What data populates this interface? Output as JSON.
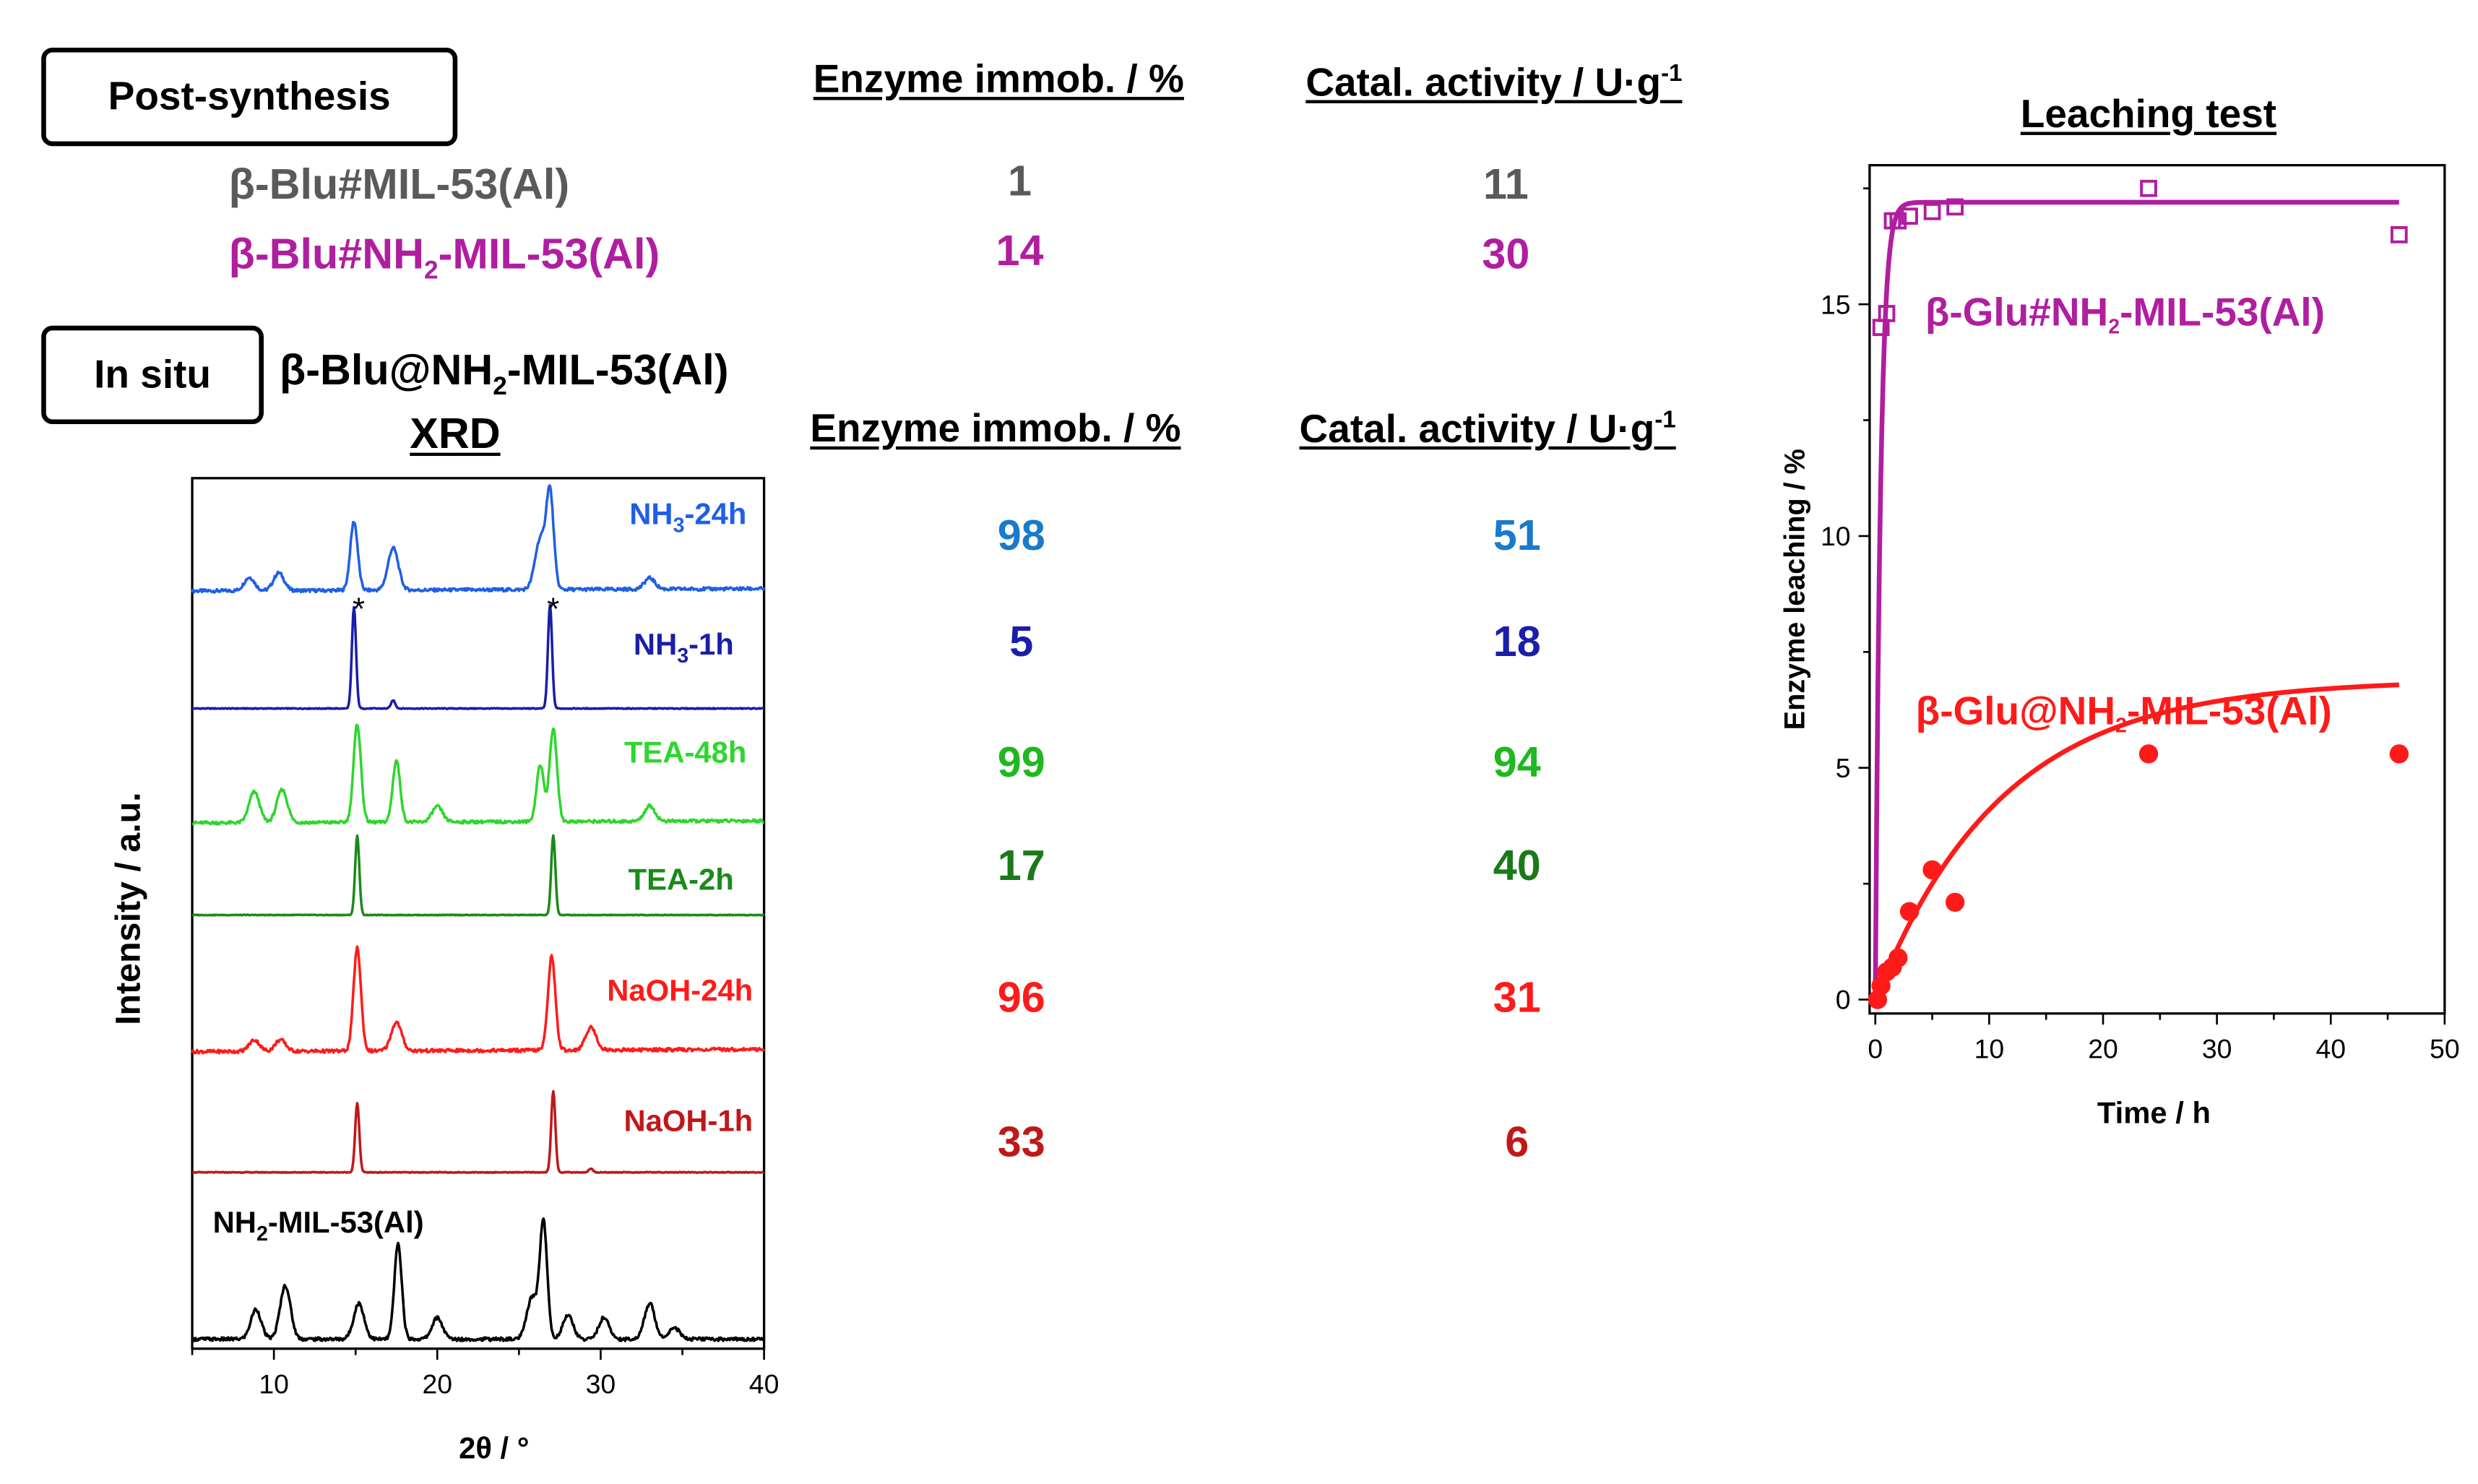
{
  "post_synthesis": {
    "box_label": "Post-synthesis",
    "header_immob": "Enzyme immob. / %",
    "header_activity": "Catal. activity / U·g",
    "header_activity_sup": "-1",
    "rows": [
      {
        "name_pre": "β-Blu#MIL-53(Al)",
        "name_sub": "",
        "name_post": "",
        "immob": "1",
        "activity": "11",
        "color": "#5a5a5a"
      },
      {
        "name_pre": "β-Blu#NH",
        "name_sub": "2",
        "name_post": "-MIL-53(Al)",
        "immob": "14",
        "activity": "30",
        "color": "#b01ea0"
      }
    ]
  },
  "in_situ": {
    "box_label": "In situ",
    "material_pre": "β-Blu@NH",
    "material_sub": "2",
    "material_post": "-MIL-53(Al)",
    "xrd_title": "XRD",
    "header_immob": "Enzyme immob. / %",
    "header_activity": "Catal. activity / U·g",
    "header_activity_sup": "-1",
    "rows": [
      {
        "label_pre": "NH",
        "label_sub": "3",
        "label_post": "-24h",
        "immob": "98",
        "activity": "51",
        "color": "#1f5fe6",
        "num_color": "#1a7acb"
      },
      {
        "label_pre": "NH",
        "label_sub": "3",
        "label_post": "-1h",
        "immob": "5",
        "activity": "18",
        "color": "#1a1ea8",
        "num_color": "#1a1ea8"
      },
      {
        "label_pre": "TEA-48h",
        "label_sub": "",
        "label_post": "",
        "immob": "99",
        "activity": "94",
        "color": "#2ed62e",
        "num_color": "#1fb81f"
      },
      {
        "label_pre": "TEA-2h",
        "label_sub": "",
        "label_post": "",
        "immob": "17",
        "activity": "40",
        "color": "#1a8a1a",
        "num_color": "#1a7a1a"
      },
      {
        "label_pre": "NaOH-24h",
        "label_sub": "",
        "label_post": "",
        "immob": "96",
        "activity": "31",
        "color": "#ff1a1a",
        "num_color": "#ff1a1a"
      },
      {
        "label_pre": "NaOH-1h",
        "label_sub": "",
        "label_post": "",
        "immob": "33",
        "activity": "6",
        "color": "#c01818",
        "num_color": "#c01818"
      },
      {
        "label_pre": "NH",
        "label_sub": "2",
        "label_post": "-MIL-53(Al)",
        "immob": "",
        "activity": "",
        "color": "#000000",
        "num_color": "#000000"
      }
    ]
  },
  "chart_data": [
    {
      "type": "line",
      "title": "XRD",
      "xlabel": "2θ / °",
      "ylabel": "Intensity / a.u.",
      "xlim": [
        5,
        40
      ],
      "x_ticks": [
        "10",
        "20",
        "30",
        "40"
      ],
      "y_ticks": [],
      "peak_marker": "*",
      "peak_marker_positions": [
        15.0,
        26.9
      ],
      "series": [
        {
          "name": "NH3-24h",
          "color": "#1f5fe6",
          "peaks": [
            [
              8.5,
              0.12
            ],
            [
              10.3,
              0.16
            ],
            [
              14.9,
              0.62
            ],
            [
              17.3,
              0.38
            ],
            [
              26.3,
              0.45
            ],
            [
              26.9,
              0.85
            ],
            [
              33,
              0.1
            ]
          ]
        },
        {
          "name": "NH3-1h",
          "color": "#1a1ea8",
          "peaks": [
            [
              14.9,
              0.98
            ],
            [
              17.3,
              0.08
            ],
            [
              26.9,
              1.0
            ]
          ]
        },
        {
          "name": "TEA-48h",
          "color": "#2ed62e",
          "peaks": [
            [
              8.8,
              0.3
            ],
            [
              10.5,
              0.32
            ],
            [
              15.1,
              0.95
            ],
            [
              17.5,
              0.6
            ],
            [
              20.0,
              0.15
            ],
            [
              26.3,
              0.55
            ],
            [
              27.1,
              0.9
            ],
            [
              33,
              0.15
            ]
          ]
        },
        {
          "name": "TEA-2h",
          "color": "#1a8a1a",
          "peaks": [
            [
              15.1,
              1.0
            ],
            [
              27.1,
              1.0
            ]
          ]
        },
        {
          "name": "NaOH-24h",
          "color": "#ff1a1a",
          "peaks": [
            [
              8.8,
              0.1
            ],
            [
              10.4,
              0.1
            ],
            [
              15.1,
              0.9
            ],
            [
              17.5,
              0.25
            ],
            [
              27.0,
              0.82
            ],
            [
              29.4,
              0.2
            ]
          ]
        },
        {
          "name": "NaOH-1h",
          "color": "#c01818",
          "peaks": [
            [
              15.1,
              0.75
            ],
            [
              27.1,
              0.88
            ],
            [
              29.4,
              0.04
            ]
          ]
        },
        {
          "name": "NH2-MIL-53(Al)",
          "color": "#000000",
          "peaks": [
            [
              8.9,
              0.25
            ],
            [
              10.7,
              0.45
            ],
            [
              15.2,
              0.3
            ],
            [
              17.6,
              0.8
            ],
            [
              20.0,
              0.18
            ],
            [
              25.8,
              0.35
            ],
            [
              26.5,
              0.98
            ],
            [
              28.0,
              0.2
            ],
            [
              30.2,
              0.18
            ],
            [
              33.0,
              0.3
            ],
            [
              34.5,
              0.1
            ]
          ]
        }
      ]
    },
    {
      "type": "scatter",
      "title": "Leaching test",
      "xlabel": "Time / h",
      "ylabel": "Enzyme leaching / %",
      "xlim": [
        -0.5,
        50
      ],
      "ylim": [
        -0.3,
        18
      ],
      "x_ticks": [
        0,
        10,
        20,
        30,
        40,
        50
      ],
      "y_ticks": [
        0,
        5,
        10,
        15
      ],
      "series": [
        {
          "name_pre": "β-Glu#NH",
          "name_sub": "2",
          "name_post": "-MIL-53(Al)",
          "color": "#b01ea0",
          "marker": "open-square",
          "x": [
            0.5,
            1.0,
            1.5,
            2,
            3,
            5,
            7,
            24,
            46
          ],
          "y": [
            14.5,
            14.8,
            16.8,
            16.8,
            16.9,
            17.0,
            17.1,
            17.5,
            16.5
          ],
          "fit": {
            "a": 17.2,
            "k": 2.2
          }
        },
        {
          "name_pre": "β-Glu@NH",
          "name_sub": "2",
          "name_post": "-MIL-53(Al)",
          "color": "#ff1a1a",
          "marker": "filled-circle",
          "x": [
            0.2,
            0.5,
            1,
            1.5,
            2,
            3,
            5,
            7,
            24,
            46
          ],
          "y": [
            0,
            0.3,
            0.6,
            0.7,
            0.9,
            1.9,
            2.8,
            2.1,
            5.3,
            5.3
          ],
          "fit": {
            "a": 6.9,
            "k": 0.09
          }
        }
      ]
    }
  ]
}
